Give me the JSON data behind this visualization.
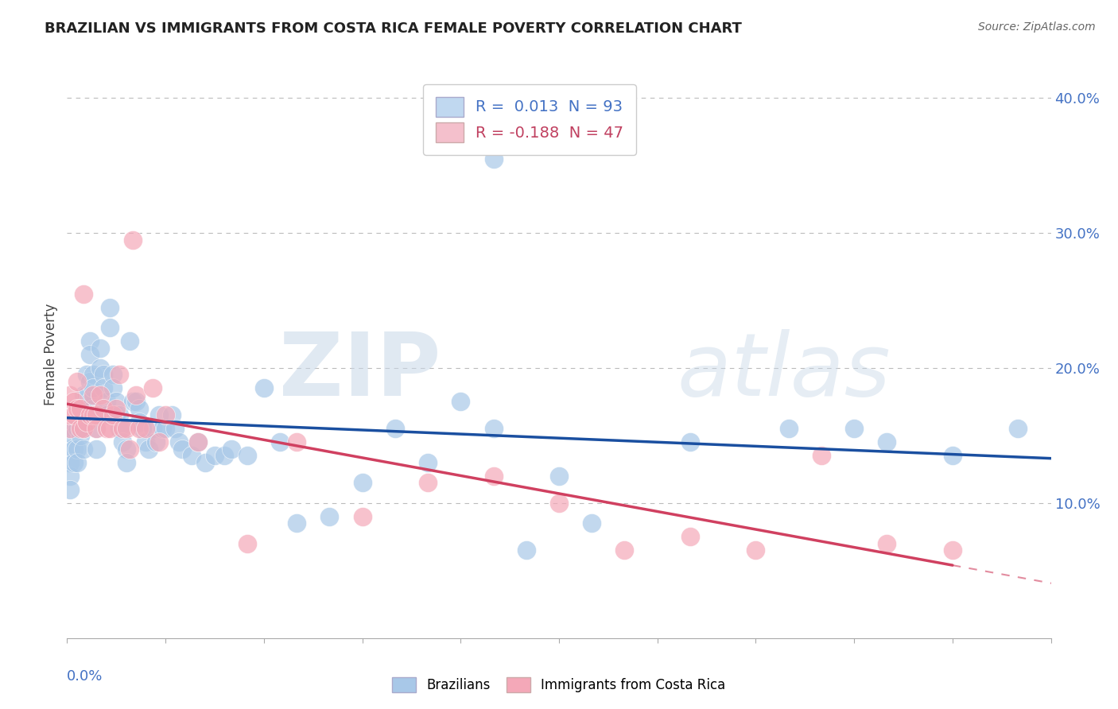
{
  "title": "BRAZILIAN VS IMMIGRANTS FROM COSTA RICA FEMALE POVERTY CORRELATION CHART",
  "source": "Source: ZipAtlas.com",
  "ylabel": "Female Poverty",
  "xlim": [
    0.0,
    0.3
  ],
  "ylim": [
    0.0,
    0.42
  ],
  "legend_blue_label": "R =  0.013  N = 93",
  "legend_pink_label": "R = -0.188  N = 47",
  "blue_color": "#a8c8e8",
  "pink_color": "#f4a8b8",
  "blue_line_color": "#1a4fa0",
  "pink_line_color": "#d04060",
  "blue_R": 0.013,
  "pink_R": -0.188,
  "brazilians_x": [
    0.001,
    0.001,
    0.001,
    0.001,
    0.001,
    0.002,
    0.002,
    0.002,
    0.002,
    0.003,
    0.003,
    0.003,
    0.003,
    0.004,
    0.004,
    0.004,
    0.005,
    0.005,
    0.005,
    0.005,
    0.006,
    0.006,
    0.007,
    0.007,
    0.007,
    0.007,
    0.008,
    0.008,
    0.008,
    0.009,
    0.009,
    0.009,
    0.01,
    0.01,
    0.011,
    0.011,
    0.012,
    0.012,
    0.013,
    0.013,
    0.014,
    0.014,
    0.015,
    0.015,
    0.016,
    0.016,
    0.017,
    0.017,
    0.018,
    0.018,
    0.019,
    0.02,
    0.021,
    0.022,
    0.022,
    0.023,
    0.024,
    0.025,
    0.026,
    0.027,
    0.028,
    0.029,
    0.03,
    0.032,
    0.033,
    0.034,
    0.035,
    0.038,
    0.04,
    0.042,
    0.045,
    0.048,
    0.05,
    0.055,
    0.06,
    0.065,
    0.07,
    0.08,
    0.09,
    0.1,
    0.11,
    0.12,
    0.13,
    0.15,
    0.16,
    0.19,
    0.22,
    0.24,
    0.25,
    0.27,
    0.29,
    0.13,
    0.14
  ],
  "brazilians_y": [
    0.155,
    0.14,
    0.13,
    0.12,
    0.11,
    0.155,
    0.15,
    0.14,
    0.13,
    0.16,
    0.155,
    0.14,
    0.13,
    0.17,
    0.165,
    0.15,
    0.18,
    0.165,
    0.155,
    0.14,
    0.195,
    0.18,
    0.22,
    0.21,
    0.19,
    0.175,
    0.195,
    0.185,
    0.17,
    0.165,
    0.155,
    0.14,
    0.215,
    0.2,
    0.195,
    0.185,
    0.175,
    0.165,
    0.245,
    0.23,
    0.195,
    0.185,
    0.175,
    0.165,
    0.165,
    0.155,
    0.155,
    0.145,
    0.14,
    0.13,
    0.22,
    0.175,
    0.175,
    0.17,
    0.16,
    0.155,
    0.145,
    0.14,
    0.155,
    0.145,
    0.165,
    0.155,
    0.155,
    0.165,
    0.155,
    0.145,
    0.14,
    0.135,
    0.145,
    0.13,
    0.135,
    0.135,
    0.14,
    0.135,
    0.185,
    0.145,
    0.085,
    0.09,
    0.115,
    0.155,
    0.13,
    0.175,
    0.155,
    0.12,
    0.085,
    0.145,
    0.155,
    0.155,
    0.145,
    0.135,
    0.155,
    0.355,
    0.065
  ],
  "costarica_x": [
    0.001,
    0.001,
    0.001,
    0.002,
    0.002,
    0.003,
    0.003,
    0.004,
    0.004,
    0.005,
    0.005,
    0.006,
    0.007,
    0.008,
    0.008,
    0.009,
    0.009,
    0.01,
    0.011,
    0.012,
    0.013,
    0.014,
    0.015,
    0.016,
    0.017,
    0.018,
    0.019,
    0.02,
    0.021,
    0.022,
    0.024,
    0.026,
    0.028,
    0.03,
    0.04,
    0.055,
    0.07,
    0.09,
    0.11,
    0.13,
    0.15,
    0.17,
    0.19,
    0.21,
    0.23,
    0.25,
    0.27
  ],
  "costarica_y": [
    0.155,
    0.165,
    0.18,
    0.175,
    0.165,
    0.19,
    0.17,
    0.17,
    0.155,
    0.155,
    0.255,
    0.16,
    0.165,
    0.18,
    0.165,
    0.165,
    0.155,
    0.18,
    0.17,
    0.155,
    0.155,
    0.165,
    0.17,
    0.195,
    0.155,
    0.155,
    0.14,
    0.295,
    0.18,
    0.155,
    0.155,
    0.185,
    0.145,
    0.165,
    0.145,
    0.07,
    0.145,
    0.09,
    0.115,
    0.12,
    0.1,
    0.065,
    0.075,
    0.065,
    0.135,
    0.07,
    0.065
  ]
}
